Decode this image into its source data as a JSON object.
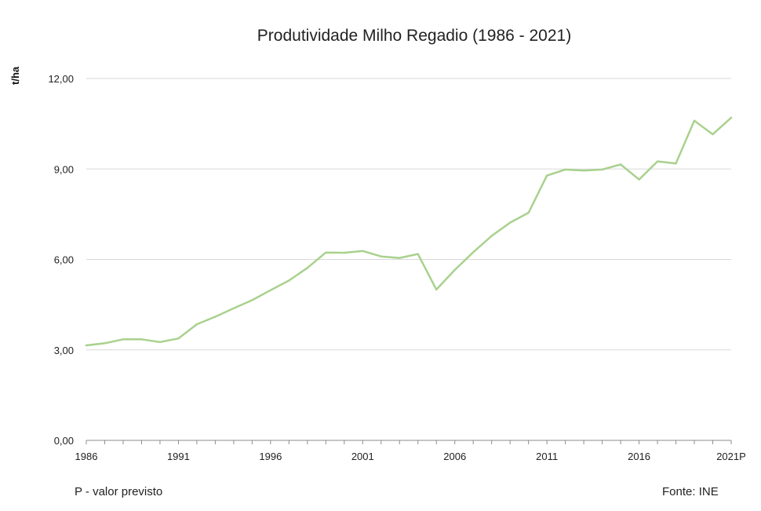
{
  "chart_data": {
    "type": "line",
    "title": "Produtividade Milho Regadio (1986 - 2021)",
    "xlabel": "",
    "ylabel": "t/ha",
    "ylim": [
      0,
      12
    ],
    "yticks": [
      "0,00",
      "3,00",
      "6,00",
      "9,00",
      "12,00"
    ],
    "ytick_values": [
      0,
      3,
      6,
      9,
      12
    ],
    "xtick_labels": [
      "1986",
      "1991",
      "1996",
      "2001",
      "2006",
      "2011",
      "2016",
      "2021P"
    ],
    "xtick_years": [
      1986,
      1991,
      1996,
      2001,
      2006,
      2011,
      2016,
      2021
    ],
    "grid": true,
    "line_color": "#a9d18e",
    "series": [
      {
        "name": "Produtividade Milho Regadio",
        "x": [
          1986,
          1987,
          1988,
          1989,
          1990,
          1991,
          1992,
          1993,
          1994,
          1995,
          1996,
          1997,
          1998,
          1999,
          2000,
          2001,
          2002,
          2003,
          2004,
          2005,
          2006,
          2007,
          2008,
          2009,
          2010,
          2011,
          2012,
          2013,
          2014,
          2015,
          2016,
          2017,
          2018,
          2019,
          2020,
          2021
        ],
        "values": [
          3.15,
          3.22,
          3.35,
          3.35,
          3.26,
          3.38,
          3.85,
          4.1,
          4.38,
          4.65,
          4.98,
          5.3,
          5.72,
          6.23,
          6.22,
          6.28,
          6.1,
          6.05,
          6.18,
          5.0,
          5.65,
          6.24,
          6.78,
          7.22,
          7.55,
          8.78,
          8.98,
          8.95,
          8.98,
          9.15,
          8.65,
          9.25,
          9.18,
          10.6,
          10.15,
          10.7
        ]
      }
    ]
  },
  "footnotes": {
    "left": "P - valor previsto",
    "right": "Fonte: INE"
  }
}
